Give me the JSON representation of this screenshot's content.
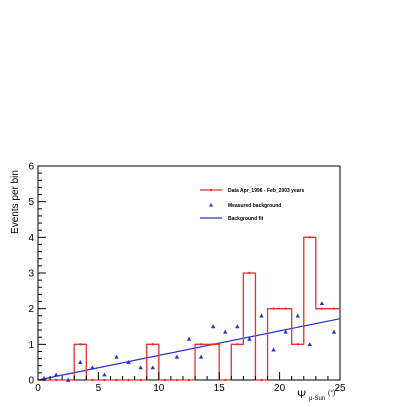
{
  "chart_data": {
    "type": "histogram",
    "title": "",
    "xlabel_main": "Ψ",
    "xlabel_sub": "μ-Sun",
    "xlabel_unit": "(°)",
    "ylabel": "Events per bin",
    "xlim": [
      0,
      25
    ],
    "ylim": [
      0,
      6
    ],
    "x_ticks": [
      0,
      5,
      10,
      15,
      20,
      25
    ],
    "y_ticks": [
      0,
      1,
      2,
      3,
      4,
      5,
      6
    ],
    "grid": false,
    "legend_position": "top-right",
    "legend": [
      {
        "label": "Data  Apr_1996 - Feb_2003 years",
        "style": "line-marker",
        "color": "#e8322d"
      },
      {
        "label": "Measured background",
        "style": "triangle",
        "color": "#2233cc"
      },
      {
        "label": "Background fit",
        "style": "line",
        "color": "#2233cc"
      }
    ],
    "series": [
      {
        "name": "Data  Apr_1996 - Feb_2003 years",
        "kind": "step",
        "color": "#e8322d",
        "bin_edges": [
          0,
          1,
          2,
          3,
          4,
          5,
          6,
          7,
          8,
          9,
          10,
          11,
          12,
          13,
          14,
          15,
          16,
          17,
          18,
          19,
          20,
          21,
          22,
          23,
          24,
          25
        ],
        "values": [
          0,
          0,
          0,
          1,
          0,
          0,
          0,
          0,
          0,
          1,
          0,
          0,
          0,
          1,
          1,
          0,
          1,
          3,
          0,
          2,
          2,
          1,
          4,
          2,
          2
        ]
      },
      {
        "name": "Measured background",
        "kind": "scatter",
        "color": "#2233cc",
        "points": [
          {
            "x": 0.5,
            "y": 0.05
          },
          {
            "x": 1.5,
            "y": 0.15
          },
          {
            "x": 2.5,
            "y": 0.0
          },
          {
            "x": 3.5,
            "y": 0.5
          },
          {
            "x": 4.5,
            "y": 0.35
          },
          {
            "x": 5.5,
            "y": 0.15
          },
          {
            "x": 6.5,
            "y": 0.65
          },
          {
            "x": 7.5,
            "y": 0.5
          },
          {
            "x": 8.5,
            "y": 0.35
          },
          {
            "x": 9.5,
            "y": 0.35
          },
          {
            "x": 11.5,
            "y": 0.65
          },
          {
            "x": 12.5,
            "y": 1.15
          },
          {
            "x": 13.5,
            "y": 0.65
          },
          {
            "x": 14.5,
            "y": 1.5
          },
          {
            "x": 15.5,
            "y": 1.35
          },
          {
            "x": 16.5,
            "y": 1.5
          },
          {
            "x": 17.5,
            "y": 1.15
          },
          {
            "x": 18.5,
            "y": 1.8
          },
          {
            "x": 19.5,
            "y": 0.85
          },
          {
            "x": 20.5,
            "y": 1.35
          },
          {
            "x": 21.5,
            "y": 1.8
          },
          {
            "x": 22.5,
            "y": 1.0
          },
          {
            "x": 23.5,
            "y": 2.15
          },
          {
            "x": 24.5,
            "y": 1.35
          }
        ]
      },
      {
        "name": "Background fit",
        "kind": "line",
        "color": "#2233cc",
        "points": [
          {
            "x": 0,
            "y": 0.0
          },
          {
            "x": 25,
            "y": 1.72
          }
        ]
      }
    ]
  }
}
